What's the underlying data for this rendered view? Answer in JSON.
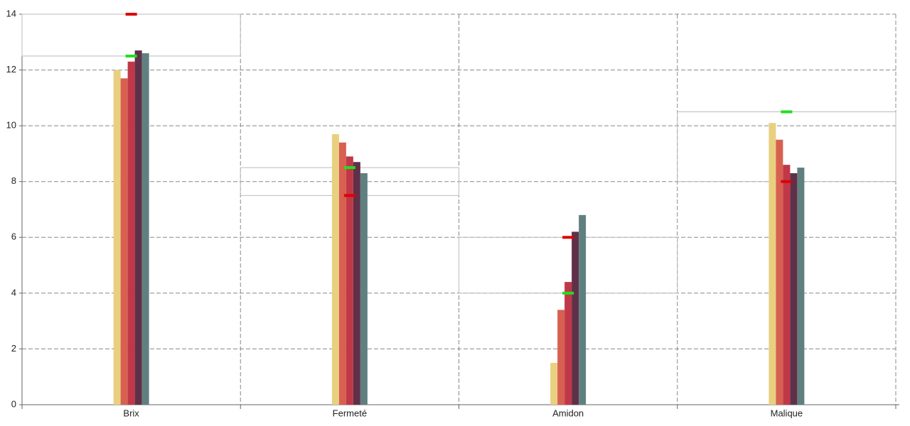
{
  "chart_data": {
    "type": "bar",
    "categories": [
      "Brix",
      "Fermeté",
      "Amidon",
      "Malique"
    ],
    "series": [
      {
        "color": "#e8d080",
        "values": [
          12.0,
          9.7,
          1.5,
          10.1
        ]
      },
      {
        "color": "#d86050",
        "values": [
          11.7,
          9.4,
          3.4,
          9.5
        ]
      },
      {
        "color": "#c03848",
        "values": [
          12.3,
          8.9,
          4.4,
          8.6
        ]
      },
      {
        "color": "#603048",
        "values": [
          12.7,
          8.7,
          6.2,
          8.3
        ]
      },
      {
        "color": "#608080",
        "values": [
          12.6,
          8.3,
          6.8,
          8.5
        ]
      }
    ],
    "markers": [
      {
        "color": "#22dd22",
        "values": [
          12.5,
          8.5,
          4,
          10.5
        ]
      },
      {
        "color": "#dd0000",
        "values": [
          14,
          7.5,
          6,
          8
        ]
      }
    ],
    "ylim": [
      0,
      14
    ],
    "yticks": [
      0,
      2,
      4,
      6,
      8,
      10,
      12,
      14
    ],
    "grid": true
  }
}
